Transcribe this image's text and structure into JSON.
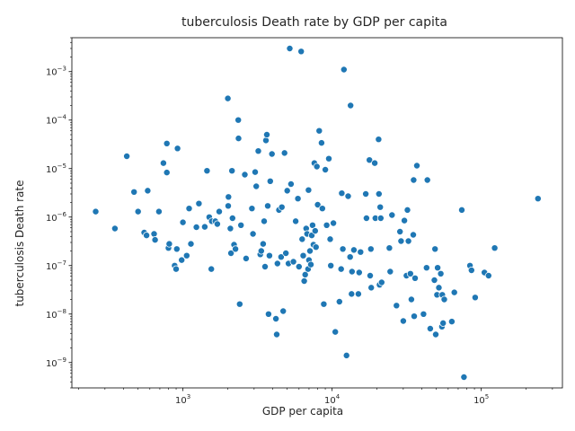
{
  "chart_data": {
    "type": "scatter",
    "title": "tuberculosis Death rate by GDP per capita",
    "xlabel": "GDP per capita",
    "ylabel": "tuberculosis Death rate",
    "x_scale": "log",
    "y_scale": "log",
    "xlim": [
      180,
      350000
    ],
    "ylim": [
      3e-10,
      0.005
    ],
    "x_ticks": [
      {
        "value": 1000,
        "base": "10",
        "exp": "3"
      },
      {
        "value": 10000,
        "base": "10",
        "exp": "4"
      },
      {
        "value": 100000,
        "base": "10",
        "exp": "5"
      }
    ],
    "y_ticks": [
      {
        "value": 1e-09,
        "base": "10",
        "exp": "−9"
      },
      {
        "value": 1e-08,
        "base": "10",
        "exp": "−8"
      },
      {
        "value": 1e-07,
        "base": "10",
        "exp": "−7"
      },
      {
        "value": 1e-06,
        "base": "10",
        "exp": "−6"
      },
      {
        "value": 1e-05,
        "base": "10",
        "exp": "−5"
      },
      {
        "value": 0.0001,
        "base": "10",
        "exp": "−4"
      },
      {
        "value": 0.001,
        "base": "10",
        "exp": "−3"
      }
    ],
    "grid": false,
    "color": "#1f77b4",
    "points": [
      [
        260,
        1.3e-06
      ],
      [
        350,
        5.8e-07
      ],
      [
        420,
        1.8e-05
      ],
      [
        470,
        3.3e-06
      ],
      [
        500,
        1.3e-06
      ],
      [
        550,
        4.8e-07
      ],
      [
        570,
        4.2e-07
      ],
      [
        580,
        3.5e-06
      ],
      [
        640,
        4.5e-07
      ],
      [
        650,
        3.4e-07
      ],
      [
        690,
        1.3e-06
      ],
      [
        740,
        1.3e-05
      ],
      [
        780,
        3.3e-05
      ],
      [
        780,
        8.3e-06
      ],
      [
        800,
        2.3e-07
      ],
      [
        810,
        2.8e-07
      ],
      [
        880,
        1e-07
      ],
      [
        900,
        8.5e-08
      ],
      [
        910,
        2.2e-07
      ],
      [
        920,
        2.6e-05
      ],
      [
        980,
        1.3e-07
      ],
      [
        1000,
        7.8e-07
      ],
      [
        1060,
        1.6e-07
      ],
      [
        1100,
        1.5e-06
      ],
      [
        1130,
        2.8e-07
      ],
      [
        1230,
        6.2e-07
      ],
      [
        1280,
        1.9e-06
      ],
      [
        1400,
        6.3e-07
      ],
      [
        1450,
        9e-06
      ],
      [
        1500,
        1e-06
      ],
      [
        1550,
        8.5e-08
      ],
      [
        1560,
        8.2e-07
      ],
      [
        1650,
        8.2e-07
      ],
      [
        1700,
        7.2e-07
      ],
      [
        1750,
        1.3e-06
      ],
      [
        2000,
        0.00028
      ],
      [
        2010,
        1.7e-06
      ],
      [
        2020,
        2.6e-06
      ],
      [
        2080,
        5.8e-07
      ],
      [
        2100,
        1.8e-07
      ],
      [
        2130,
        9e-06
      ],
      [
        2150,
        9.5e-07
      ],
      [
        2200,
        2.7e-07
      ],
      [
        2250,
        2.2e-07
      ],
      [
        2350,
        0.0001
      ],
      [
        2360,
        4.2e-05
      ],
      [
        2400,
        1.6e-08
      ],
      [
        2450,
        6.8e-07
      ],
      [
        2600,
        7.5e-06
      ],
      [
        2650,
        1.4e-07
      ],
      [
        2900,
        1.5e-06
      ],
      [
        2950,
        4.5e-07
      ],
      [
        3050,
        8.5e-06
      ],
      [
        3100,
        4.3e-06
      ],
      [
        3200,
        2.3e-05
      ],
      [
        3300,
        1.7e-07
      ],
      [
        3350,
        2e-07
      ],
      [
        3450,
        2.8e-07
      ],
      [
        3500,
        8.2e-07
      ],
      [
        3550,
        9.5e-08
      ],
      [
        3600,
        3.8e-05
      ],
      [
        3650,
        5e-05
      ],
      [
        3700,
        1.7e-06
      ],
      [
        3750,
        1e-08
      ],
      [
        3800,
        1.6e-07
      ],
      [
        3850,
        5.5e-06
      ],
      [
        3950,
        2e-05
      ],
      [
        4200,
        8e-09
      ],
      [
        4250,
        3.8e-09
      ],
      [
        4300,
        1.1e-07
      ],
      [
        4400,
        1.4e-06
      ],
      [
        4550,
        1.5e-07
      ],
      [
        4600,
        1.6e-06
      ],
      [
        4700,
        1.15e-08
      ],
      [
        4800,
        2.1e-05
      ],
      [
        4900,
        1.8e-07
      ],
      [
        5000,
        3.5e-06
      ],
      [
        5100,
        1.1e-07
      ],
      [
        5200,
        0.003
      ],
      [
        5300,
        4.8e-06
      ],
      [
        5500,
        1.2e-07
      ],
      [
        5700,
        8.2e-07
      ],
      [
        5900,
        2.4e-06
      ],
      [
        6000,
        9.5e-08
      ],
      [
        6200,
        0.0026
      ],
      [
        6300,
        3.5e-07
      ],
      [
        6400,
        1.6e-07
      ],
      [
        6500,
        4.8e-08
      ],
      [
        6600,
        6.5e-08
      ],
      [
        6700,
        5.8e-07
      ],
      [
        6800,
        4.5e-07
      ],
      [
        6900,
        8.5e-08
      ],
      [
        6950,
        3.6e-06
      ],
      [
        7000,
        1.3e-07
      ],
      [
        7100,
        2e-07
      ],
      [
        7200,
        1.05e-07
      ],
      [
        7300,
        4.2e-07
      ],
      [
        7400,
        6.8e-07
      ],
      [
        7500,
        2.7e-07
      ],
      [
        7600,
        1.3e-05
      ],
      [
        7700,
        5.2e-07
      ],
      [
        7800,
        2.4e-07
      ],
      [
        7900,
        1.1e-05
      ],
      [
        8000,
        1.8e-06
      ],
      [
        8200,
        6e-05
      ],
      [
        8500,
        3.4e-05
      ],
      [
        8600,
        1.5e-06
      ],
      [
        8800,
        1.6e-08
      ],
      [
        9000,
        9.5e-06
      ],
      [
        9200,
        6.8e-07
      ],
      [
        9500,
        1.6e-05
      ],
      [
        9700,
        3.5e-07
      ],
      [
        9800,
        1e-07
      ],
      [
        10200,
        7.5e-07
      ],
      [
        10500,
        4.3e-09
      ],
      [
        11200,
        1.8e-08
      ],
      [
        11500,
        8.5e-08
      ],
      [
        11600,
        3.1e-06
      ],
      [
        11800,
        2.2e-07
      ],
      [
        12000,
        0.0011
      ],
      [
        12500,
        1.4e-09
      ],
      [
        12800,
        2.7e-06
      ],
      [
        13200,
        1.5e-07
      ],
      [
        13300,
        0.0002
      ],
      [
        13500,
        2.6e-08
      ],
      [
        13600,
        7.5e-08
      ],
      [
        14000,
        2.1e-07
      ],
      [
        15000,
        2.6e-08
      ],
      [
        15200,
        7.2e-08
      ],
      [
        15500,
        1.9e-07
      ],
      [
        16800,
        3e-06
      ],
      [
        17000,
        9.5e-07
      ],
      [
        17800,
        1.5e-05
      ],
      [
        18000,
        6.2e-08
      ],
      [
        18200,
        2.2e-07
      ],
      [
        18300,
        3.5e-08
      ],
      [
        19300,
        1.3e-05
      ],
      [
        19500,
        9.5e-07
      ],
      [
        20500,
        4e-05
      ],
      [
        20600,
        3e-06
      ],
      [
        20800,
        4e-08
      ],
      [
        21000,
        1.6e-06
      ],
      [
        21200,
        9.5e-07
      ],
      [
        21500,
        4.5e-08
      ],
      [
        24200,
        2.3e-07
      ],
      [
        24500,
        7.5e-08
      ],
      [
        25200,
        1.1e-06
      ],
      [
        27000,
        1.5e-08
      ],
      [
        28500,
        5e-07
      ],
      [
        29000,
        3.2e-07
      ],
      [
        30000,
        7.2e-09
      ],
      [
        30500,
        8.5e-07
      ],
      [
        31500,
        6.2e-08
      ],
      [
        32000,
        1.4e-06
      ],
      [
        32500,
        3.2e-07
      ],
      [
        33500,
        6.8e-08
      ],
      [
        34000,
        2e-08
      ],
      [
        35000,
        4.3e-07
      ],
      [
        35200,
        5.8e-06
      ],
      [
        35500,
        9e-09
      ],
      [
        36000,
        5.5e-08
      ],
      [
        37000,
        1.15e-05
      ],
      [
        41000,
        1e-08
      ],
      [
        43000,
        9e-08
      ],
      [
        43500,
        5.8e-06
      ],
      [
        45500,
        5e-09
      ],
      [
        48500,
        5e-08
      ],
      [
        49000,
        2.2e-07
      ],
      [
        49500,
        3.8e-09
      ],
      [
        50500,
        2.5e-08
      ],
      [
        51000,
        9e-08
      ],
      [
        52000,
        3.5e-08
      ],
      [
        53500,
        6.8e-08
      ],
      [
        54500,
        5.5e-09
      ],
      [
        54800,
        2.5e-08
      ],
      [
        55500,
        6.5e-09
      ],
      [
        56500,
        2e-08
      ],
      [
        63500,
        7e-09
      ],
      [
        66000,
        2.8e-08
      ],
      [
        74000,
        1.4e-06
      ],
      [
        76500,
        5e-10
      ],
      [
        84000,
        1e-07
      ],
      [
        86000,
        8e-08
      ],
      [
        91000,
        2.2e-08
      ],
      [
        105000,
        7.2e-08
      ],
      [
        112000,
        6.2e-08
      ],
      [
        123000,
        2.3e-07
      ],
      [
        240000,
        2.4e-06
      ]
    ]
  }
}
